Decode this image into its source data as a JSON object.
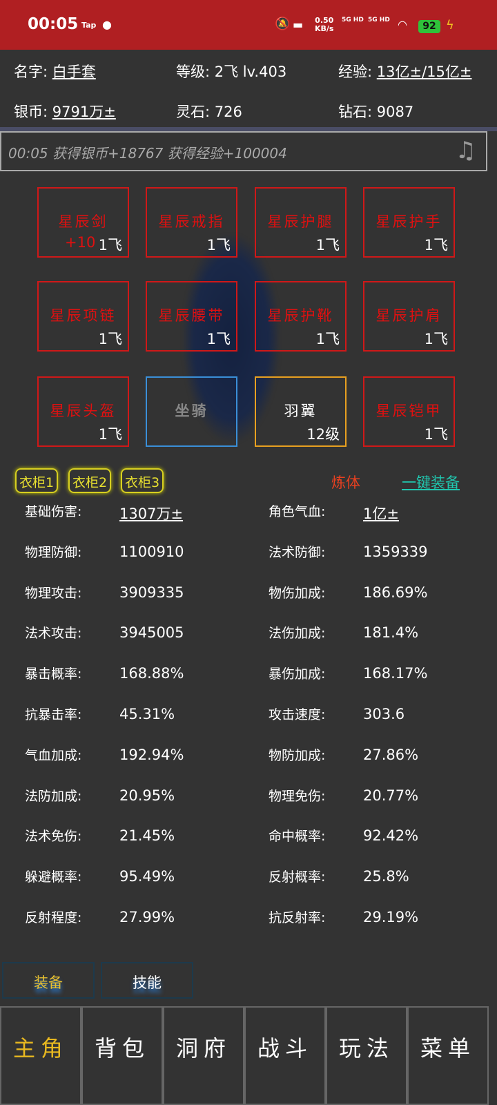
{
  "status_bar": {
    "time": "00:05",
    "tap": "Tap",
    "net_speed": "0.50",
    "net_unit": "KB/s",
    "sig1": "5G HD",
    "sig2": "5G HD",
    "battery": "92"
  },
  "player": {
    "name_label": "名字:",
    "name": "白手套",
    "level_label": "等级:",
    "level": "2飞 lv.403",
    "exp_label": "经验:",
    "exp": "13亿±/15亿±",
    "silver_label": "银币:",
    "silver": "9791万±",
    "stone_label": "灵石:",
    "stone": "726",
    "diamond_label": "钻石:",
    "diamond": "9087"
  },
  "log": {
    "text": "00:05 获得银币+18767 获得经验+100004"
  },
  "equipment": [
    {
      "name": "星辰剑",
      "level": "1飞",
      "enhance": "+10",
      "color": "#d01818"
    },
    {
      "name": "星辰戒指",
      "level": "1飞",
      "color": "#d01818"
    },
    {
      "name": "星辰护腿",
      "level": "1飞",
      "color": "#d01818"
    },
    {
      "name": "星辰护手",
      "level": "1飞",
      "color": "#d01818"
    },
    {
      "name": "星辰项链",
      "level": "1飞",
      "color": "#d01818"
    },
    {
      "name": "星辰腰带",
      "level": "1飞",
      "color": "#d01818"
    },
    {
      "name": "星辰护靴",
      "level": "1飞",
      "color": "#d01818"
    },
    {
      "name": "星辰护肩",
      "level": "1飞",
      "color": "#d01818"
    },
    {
      "name": "星辰头盔",
      "level": "1飞",
      "color": "#d01818"
    },
    {
      "name": "坐骑",
      "level": "",
      "color": "#3a8fd8"
    },
    {
      "name": "羽翼",
      "level": "12级",
      "color": "#e8a020"
    },
    {
      "name": "星辰铠甲",
      "level": "1飞",
      "color": "#d01818"
    }
  ],
  "wardrobes": [
    "衣柜1",
    "衣柜2",
    "衣柜3"
  ],
  "actions": {
    "refine": "炼体",
    "equip_all": "一键装备"
  },
  "stats": [
    [
      "基础伤害:",
      "1307万±",
      "角色气血:",
      "1亿±"
    ],
    [
      "物理防御:",
      "1100910",
      "法术防御:",
      "1359339"
    ],
    [
      "物理攻击:",
      "3909335",
      "物伤加成:",
      "186.69%"
    ],
    [
      "法术攻击:",
      "3945005",
      "法伤加成:",
      "181.4%"
    ],
    [
      "暴击概率:",
      "168.88%",
      "暴伤加成:",
      "168.17%"
    ],
    [
      "抗暴击率:",
      "45.31%",
      "攻击速度:",
      "303.6"
    ],
    [
      "气血加成:",
      "192.94%",
      "物防加成:",
      "27.86%"
    ],
    [
      "法防加成:",
      "20.95%",
      "物理免伤:",
      "20.77%"
    ],
    [
      "法术免伤:",
      "21.45%",
      "命中概率:",
      "92.42%"
    ],
    [
      "躲避概率:",
      "95.49%",
      "反射概率:",
      "25.8%"
    ],
    [
      "反射程度:",
      "27.99%",
      "抗反射率:",
      "29.19%"
    ]
  ],
  "subtabs": [
    "装备",
    "技能"
  ],
  "nav": [
    "主角",
    "背包",
    "洞府",
    "战斗",
    "玩法",
    "菜单"
  ],
  "colors": {
    "accent": "#e8b820",
    "status_bar": "#b01f22"
  }
}
